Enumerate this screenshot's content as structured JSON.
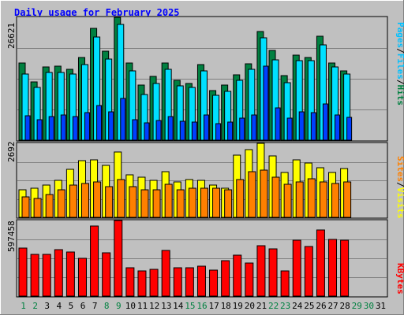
{
  "chart_title": "Daily usage for February 2025",
  "colors": {
    "background": "#c0c0c0",
    "panel": "#c0c0c0",
    "hits": "#008040",
    "files": "#00e0ff",
    "pages": "#0040ff",
    "visits": "#ffff00",
    "sites": "#ff8000",
    "kbytes": "#ff0000",
    "title": "#0000ff",
    "weekday": "#008040",
    "weekend": "#008040",
    "day_normal": "#000000"
  },
  "legends": {
    "top": [
      {
        "text": "Hits",
        "color": "#008040"
      },
      {
        "text": "/",
        "color": "#000000"
      },
      {
        "text": "Files",
        "color": "#00c0ff"
      },
      {
        "text": "/",
        "color": "#000000"
      },
      {
        "text": "Pages",
        "color": "#00c0ff"
      }
    ],
    "middle": [
      {
        "text": "Visits",
        "color": "#ffff00"
      },
      {
        "text": "/",
        "color": "#000000"
      },
      {
        "text": "Sites",
        "color": "#ff8000"
      }
    ],
    "bottom": [
      {
        "text": "KBytes",
        "color": "#ff0000"
      }
    ]
  },
  "chart_data": [
    {
      "type": "bar",
      "panel": "hits-files-pages",
      "ymax_label": "26621",
      "ylim": [
        0,
        26621
      ],
      "categories": [
        "1",
        "2",
        "3",
        "4",
        "5",
        "6",
        "7",
        "8",
        "9",
        "10",
        "11",
        "12",
        "13",
        "14",
        "15",
        "16",
        "17",
        "18",
        "19",
        "20",
        "21",
        "22",
        "23",
        "24",
        "25",
        "26",
        "27",
        "28",
        "29",
        "30",
        "31"
      ],
      "series": [
        {
          "name": "Hits",
          "values": [
            16700,
            12600,
            15900,
            16000,
            15400,
            17900,
            24300,
            19300,
            26621,
            16700,
            11900,
            13800,
            16800,
            13000,
            12300,
            16300,
            10700,
            11900,
            14100,
            16600,
            23600,
            19500,
            14000,
            18500,
            17900,
            22600,
            16700,
            15000,
            0,
            0,
            0
          ]
        },
        {
          "name": "Files",
          "values": [
            14300,
            11400,
            14700,
            14700,
            14400,
            16300,
            22300,
            17600,
            25000,
            15000,
            9900,
            12300,
            15300,
            11700,
            11400,
            15100,
            9800,
            10500,
            13000,
            15300,
            22200,
            17400,
            12500,
            17300,
            17300,
            20700,
            15900,
            14300,
            0,
            0,
            0
          ]
        },
        {
          "name": "Pages",
          "values": [
            5300,
            4500,
            5100,
            5500,
            5200,
            6000,
            7500,
            6100,
            9000,
            4500,
            3700,
            4300,
            5100,
            4100,
            4000,
            5400,
            3500,
            3900,
            4700,
            5500,
            16000,
            7000,
            4800,
            6200,
            5900,
            7900,
            5400,
            4900,
            0,
            0,
            0
          ]
        }
      ]
    },
    {
      "type": "bar",
      "panel": "visits-sites",
      "ymax_label": "2692",
      "ylim": [
        0,
        2692
      ],
      "categories": [
        "1",
        "2",
        "3",
        "4",
        "5",
        "6",
        "7",
        "8",
        "9",
        "10",
        "11",
        "12",
        "13",
        "14",
        "15",
        "16",
        "17",
        "18",
        "19",
        "20",
        "21",
        "22",
        "23",
        "24",
        "25",
        "26",
        "27",
        "28",
        "29",
        "30",
        "31"
      ],
      "series": [
        {
          "name": "Visits",
          "values": [
            1000,
            1070,
            1160,
            1350,
            1740,
            2050,
            2100,
            1900,
            2370,
            1550,
            1450,
            1360,
            1670,
            1300,
            1380,
            1340,
            1170,
            1060,
            2270,
            2460,
            2692,
            2240,
            1630,
            2100,
            1980,
            1800,
            1640,
            1780,
            0,
            0,
            0
          ]
        },
        {
          "name": "Sites",
          "values": [
            750,
            690,
            820,
            1010,
            1160,
            1230,
            1290,
            1130,
            1380,
            1120,
            1010,
            990,
            1200,
            990,
            1050,
            1060,
            1070,
            990,
            1380,
            1650,
            1730,
            1460,
            1190,
            1300,
            1400,
            1290,
            1230,
            1300,
            0,
            0,
            0
          ]
        }
      ]
    },
    {
      "type": "bar",
      "panel": "kbytes",
      "ymax_label": "597458",
      "ylim": [
        0,
        597458
      ],
      "categories": [
        "1",
        "2",
        "3",
        "4",
        "5",
        "6",
        "7",
        "8",
        "9",
        "10",
        "11",
        "12",
        "13",
        "14",
        "15",
        "16",
        "17",
        "18",
        "19",
        "20",
        "21",
        "22",
        "23",
        "24",
        "25",
        "26",
        "27",
        "28",
        "29",
        "30",
        "31"
      ],
      "series": [
        {
          "name": "KBytes",
          "values": [
            377000,
            329000,
            329000,
            370000,
            350000,
            300000,
            553000,
            342000,
            597458,
            226000,
            201000,
            210000,
            361000,
            226000,
            224000,
            239000,
            203000,
            280000,
            322000,
            264000,
            397000,
            371000,
            197000,
            444000,
            395000,
            525000,
            449000,
            440000,
            0,
            0,
            0
          ]
        }
      ]
    }
  ]
}
